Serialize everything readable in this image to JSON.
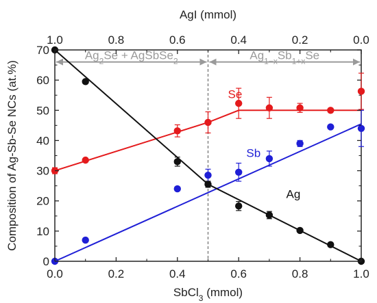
{
  "chart_data": {
    "type": "scatter",
    "xlabel": "SbCl",
    "xlabel_sub": "3",
    "xlabel_unit": " (mmol)",
    "x2label": "AgI (mmol)",
    "ylabel": "Composition of Ag-Sb-Se NCs (at.%)",
    "xlim": [
      0,
      1
    ],
    "ylim": [
      0,
      70
    ],
    "x_ticks": [
      "0.0",
      "0.2",
      "0.4",
      "0.6",
      "0.8",
      "1.0"
    ],
    "x2_ticks": [
      "1.0",
      "0.8",
      "0.6",
      "0.4",
      "0.2",
      "0.0"
    ],
    "y_ticks": [
      "0",
      "10",
      "20",
      "30",
      "40",
      "50",
      "60",
      "70"
    ],
    "boundary_x": 0.5,
    "regions": {
      "left": {
        "a": "Ag",
        "a_sub": "2",
        "b": "Se + AgSbSe",
        "b_sub": "2"
      },
      "right": {
        "a": "Ag",
        "a_sub": "1−x",
        "b": "Sb",
        "b_sub": "1+x",
        "c": "Se"
      }
    },
    "series": [
      {
        "name": "Se",
        "color": "#e41a1c",
        "x": [
          0.0,
          0.1,
          0.4,
          0.5,
          0.6,
          0.7,
          0.8,
          0.9,
          1.0
        ],
        "y": [
          30.0,
          33.5,
          43.2,
          46.0,
          52.3,
          50.8,
          50.8,
          50.0,
          56.3
        ],
        "err": [
          1.0,
          0.5,
          2.0,
          3.5,
          5.0,
          3.5,
          1.5,
          0.5,
          6.0
        ],
        "fit": [
          [
            0.0,
            30.0
          ],
          [
            0.5,
            46.0
          ],
          [
            0.6,
            50.0
          ],
          [
            1.0,
            50.0
          ]
        ]
      },
      {
        "name": "Sb",
        "color": "#1f1fd6",
        "x": [
          0.0,
          0.1,
          0.4,
          0.5,
          0.6,
          0.7,
          0.8,
          0.9,
          1.0
        ],
        "y": [
          0.0,
          7.0,
          24.0,
          28.5,
          29.5,
          34.0,
          39.0,
          44.5,
          44.0
        ],
        "err": [
          0.5,
          0.5,
          0.5,
          2.0,
          3.0,
          2.5,
          1.0,
          0.5,
          6.0
        ],
        "fit": [
          [
            0.0,
            0.0
          ],
          [
            1.0,
            45.5
          ]
        ]
      },
      {
        "name": "Ag",
        "color": "#111111",
        "x": [
          0.0,
          0.1,
          0.4,
          0.5,
          0.6,
          0.7,
          0.8,
          0.9,
          1.0
        ],
        "y": [
          70.0,
          59.5,
          33.0,
          25.5,
          18.3,
          15.3,
          10.2,
          5.5,
          0.0
        ],
        "err": [
          0.5,
          0.5,
          1.5,
          1.0,
          1.5,
          1.2,
          0.5,
          0.5,
          0.5
        ],
        "fit": [
          [
            0.0,
            70.0
          ],
          [
            0.5,
            25.5
          ],
          [
            1.0,
            0.0
          ]
        ]
      }
    ],
    "series_labels": [
      {
        "name": "Se",
        "x": 0.565,
        "y": 54.0
      },
      {
        "name": "Sb",
        "x": 0.625,
        "y": 34.5
      },
      {
        "name": "Ag",
        "x": 0.755,
        "y": 21.0
      }
    ]
  }
}
